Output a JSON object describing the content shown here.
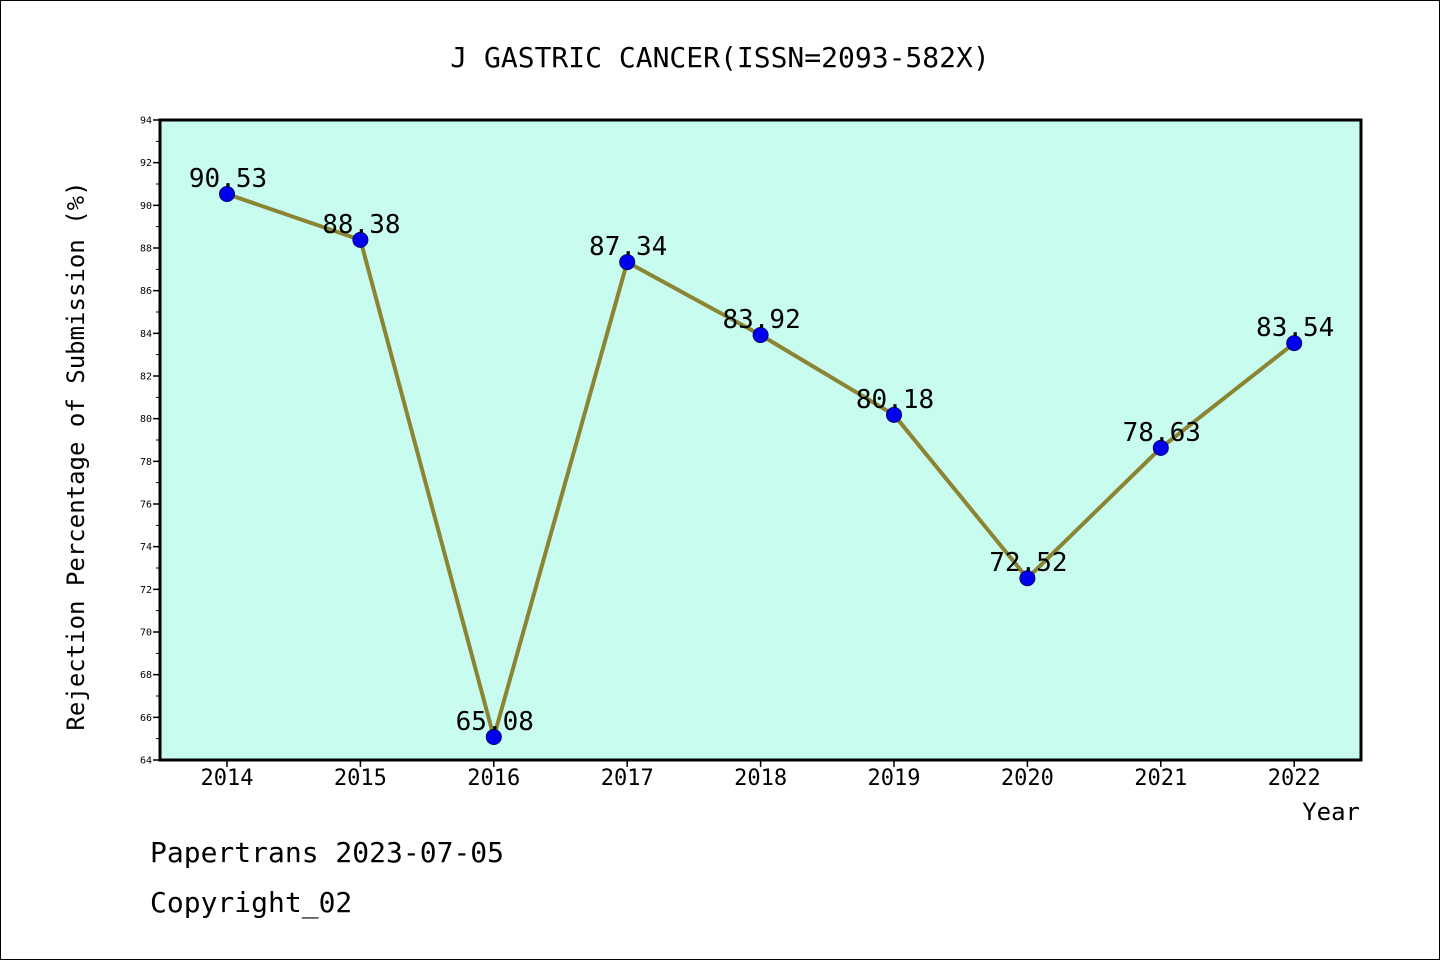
{
  "chart_data": {
    "type": "line",
    "title": "J GASTRIC CANCER(ISSN=2093-582X)",
    "xlabel": "Year",
    "ylabel": "Rejection Percentage of Submission (%)",
    "categories": [
      "2014",
      "2015",
      "2016",
      "2017",
      "2018",
      "2019",
      "2020",
      "2021",
      "2022"
    ],
    "values": [
      90.53,
      88.38,
      65.08,
      87.34,
      83.92,
      80.18,
      72.52,
      78.63,
      83.54
    ],
    "data_labels": [
      "90.53",
      "88.38",
      "65.08",
      "87.34",
      "83.92",
      "80.18",
      "72.52",
      "78.63",
      "83.54"
    ],
    "ylim": [
      64,
      94
    ],
    "yticks": [
      "64",
      "66",
      "68",
      "70",
      "72",
      "74",
      "76",
      "78",
      "80",
      "82",
      "84",
      "86",
      "88",
      "90",
      "92",
      "94"
    ],
    "grid": false,
    "colors": {
      "plot_background": "#c8fcee",
      "line": "#8b8432",
      "marker": "#0000ee",
      "marker_edge": "#00007a"
    }
  },
  "footer": {
    "line1": "Papertrans 2023-07-05",
    "line2": "Copyright_02"
  }
}
